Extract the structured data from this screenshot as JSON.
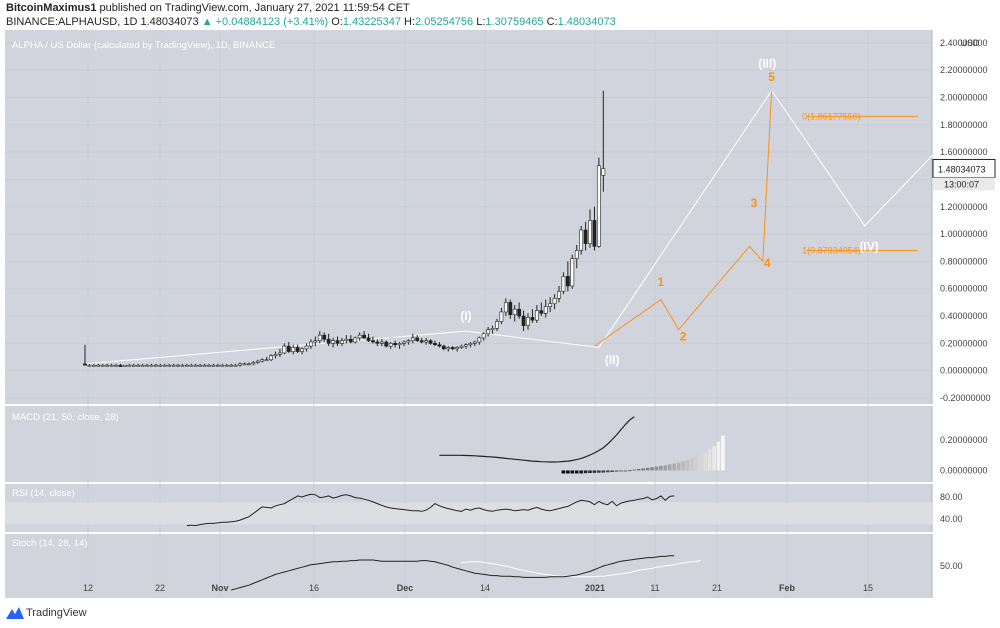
{
  "header": {
    "author": "BitcoinMaximus1",
    "published_text": "published on TradingView.com, January 27, 2021 11:59:54 CET",
    "symbol": "BINANCE:ALPHAUSD, 1D",
    "last": "1.48034073",
    "change": "▲ +0.04884123 (+3.41%)",
    "ohlc": {
      "o_label": "O:",
      "o": "1.43225347",
      "h_label": "H:",
      "h": "2.05254756",
      "l_label": "L:",
      "l": "1.30759465",
      "c_label": "C:",
      "c": "1.48034073"
    }
  },
  "footer": {
    "brand": "TradingView",
    "logo_icon": "tradingview-logo-icon"
  },
  "chart_data": [
    {
      "type": "candlestick",
      "title": "ALPHA / US Dollar (calculated by TradingView), 1D, BINANCE",
      "axis_unit": "USD",
      "scale": "linear",
      "ylim": [
        -0.2,
        2.45
      ],
      "yticks": [
        "2.40000000",
        "2.20000000",
        "2.00000000",
        "1.80000000",
        "1.60000000",
        "1.40000000",
        "1.20000000",
        "1.00000000",
        "0.80000000",
        "0.60000000",
        "0.40000000",
        "0.20000000",
        "0.00000000",
        "-0.20000000"
      ],
      "xticks": [
        "12",
        "22",
        "Nov",
        "16",
        "Dec",
        "14",
        "2021",
        "11",
        "21",
        "Feb",
        "15"
      ],
      "price_label": {
        "value": "1.48034073",
        "countdown": "13:00:07"
      },
      "last_close": 1.48034073,
      "grid": true,
      "colors": {
        "up": "#ffffff",
        "down": "#222222",
        "wave": "#f7931a",
        "projection": "#ffffff",
        "background": "#d1d4dc"
      },
      "candles": [
        [
          0.05,
          0.19,
          0.04,
          0.04
        ],
        [
          0.04,
          0.05,
          0.03,
          0.04
        ],
        [
          0.04,
          0.05,
          0.03,
          0.04
        ],
        [
          0.04,
          0.05,
          0.03,
          0.04
        ],
        [
          0.04,
          0.05,
          0.03,
          0.04
        ],
        [
          0.04,
          0.05,
          0.03,
          0.04
        ],
        [
          0.04,
          0.05,
          0.03,
          0.04
        ],
        [
          0.04,
          0.05,
          0.03,
          0.04
        ],
        [
          0.04,
          0.05,
          0.03,
          0.03
        ],
        [
          0.03,
          0.04,
          0.03,
          0.04
        ],
        [
          0.04,
          0.05,
          0.03,
          0.04
        ],
        [
          0.04,
          0.05,
          0.03,
          0.04
        ],
        [
          0.04,
          0.05,
          0.03,
          0.04
        ],
        [
          0.04,
          0.05,
          0.03,
          0.04
        ],
        [
          0.04,
          0.05,
          0.03,
          0.04
        ],
        [
          0.04,
          0.05,
          0.03,
          0.04
        ],
        [
          0.04,
          0.05,
          0.03,
          0.04
        ],
        [
          0.04,
          0.05,
          0.03,
          0.04
        ],
        [
          0.04,
          0.05,
          0.03,
          0.04
        ],
        [
          0.04,
          0.05,
          0.03,
          0.04
        ],
        [
          0.04,
          0.05,
          0.03,
          0.04
        ],
        [
          0.04,
          0.05,
          0.03,
          0.04
        ],
        [
          0.04,
          0.05,
          0.03,
          0.04
        ],
        [
          0.04,
          0.05,
          0.03,
          0.04
        ],
        [
          0.04,
          0.05,
          0.03,
          0.04
        ],
        [
          0.04,
          0.05,
          0.03,
          0.04
        ],
        [
          0.04,
          0.05,
          0.03,
          0.04
        ],
        [
          0.04,
          0.05,
          0.03,
          0.04
        ],
        [
          0.04,
          0.05,
          0.03,
          0.04
        ],
        [
          0.04,
          0.05,
          0.03,
          0.04
        ],
        [
          0.04,
          0.05,
          0.03,
          0.04
        ],
        [
          0.04,
          0.05,
          0.03,
          0.04
        ],
        [
          0.04,
          0.05,
          0.03,
          0.04
        ],
        [
          0.04,
          0.05,
          0.03,
          0.04
        ],
        [
          0.04,
          0.05,
          0.03,
          0.04
        ],
        [
          0.04,
          0.06,
          0.03,
          0.05
        ],
        [
          0.05,
          0.06,
          0.04,
          0.05
        ],
        [
          0.05,
          0.06,
          0.04,
          0.05
        ],
        [
          0.05,
          0.07,
          0.04,
          0.06
        ],
        [
          0.06,
          0.08,
          0.05,
          0.07
        ],
        [
          0.07,
          0.09,
          0.06,
          0.08
        ],
        [
          0.08,
          0.1,
          0.07,
          0.08
        ],
        [
          0.08,
          0.12,
          0.07,
          0.11
        ],
        [
          0.11,
          0.14,
          0.09,
          0.12
        ],
        [
          0.12,
          0.16,
          0.1,
          0.13
        ],
        [
          0.13,
          0.2,
          0.12,
          0.18
        ],
        [
          0.18,
          0.21,
          0.13,
          0.14
        ],
        [
          0.14,
          0.19,
          0.12,
          0.17
        ],
        [
          0.17,
          0.19,
          0.13,
          0.14
        ],
        [
          0.14,
          0.17,
          0.12,
          0.16
        ],
        [
          0.16,
          0.2,
          0.14,
          0.18
        ],
        [
          0.18,
          0.23,
          0.16,
          0.21
        ],
        [
          0.21,
          0.25,
          0.18,
          0.22
        ],
        [
          0.22,
          0.29,
          0.2,
          0.26
        ],
        [
          0.26,
          0.28,
          0.21,
          0.23
        ],
        [
          0.23,
          0.27,
          0.18,
          0.2
        ],
        [
          0.2,
          0.24,
          0.17,
          0.22
        ],
        [
          0.22,
          0.25,
          0.18,
          0.2
        ],
        [
          0.2,
          0.24,
          0.18,
          0.22
        ],
        [
          0.22,
          0.26,
          0.2,
          0.23
        ],
        [
          0.23,
          0.26,
          0.2,
          0.21
        ],
        [
          0.21,
          0.25,
          0.2,
          0.24
        ],
        [
          0.24,
          0.28,
          0.22,
          0.26
        ],
        [
          0.26,
          0.29,
          0.23,
          0.24
        ],
        [
          0.24,
          0.27,
          0.21,
          0.22
        ],
        [
          0.22,
          0.25,
          0.2,
          0.21
        ],
        [
          0.21,
          0.23,
          0.18,
          0.2
        ],
        [
          0.2,
          0.23,
          0.18,
          0.21
        ],
        [
          0.21,
          0.22,
          0.17,
          0.18
        ],
        [
          0.18,
          0.21,
          0.16,
          0.2
        ],
        [
          0.2,
          0.22,
          0.17,
          0.19
        ],
        [
          0.19,
          0.21,
          0.16,
          0.2
        ],
        [
          0.2,
          0.22,
          0.18,
          0.21
        ],
        [
          0.21,
          0.23,
          0.19,
          0.22
        ],
        [
          0.22,
          0.27,
          0.2,
          0.24
        ],
        [
          0.24,
          0.26,
          0.21,
          0.22
        ],
        [
          0.22,
          0.24,
          0.2,
          0.21
        ],
        [
          0.21,
          0.24,
          0.19,
          0.22
        ],
        [
          0.22,
          0.23,
          0.19,
          0.2
        ],
        [
          0.2,
          0.22,
          0.18,
          0.19
        ],
        [
          0.19,
          0.21,
          0.17,
          0.18
        ],
        [
          0.18,
          0.19,
          0.15,
          0.16
        ],
        [
          0.16,
          0.18,
          0.14,
          0.17
        ],
        [
          0.17,
          0.18,
          0.15,
          0.16
        ],
        [
          0.16,
          0.18,
          0.14,
          0.17
        ],
        [
          0.17,
          0.19,
          0.16,
          0.18
        ],
        [
          0.18,
          0.2,
          0.16,
          0.19
        ],
        [
          0.19,
          0.21,
          0.17,
          0.2
        ],
        [
          0.2,
          0.22,
          0.18,
          0.21
        ],
        [
          0.21,
          0.25,
          0.19,
          0.24
        ],
        [
          0.24,
          0.28,
          0.22,
          0.27
        ],
        [
          0.27,
          0.32,
          0.25,
          0.3
        ],
        [
          0.3,
          0.33,
          0.27,
          0.31
        ],
        [
          0.31,
          0.38,
          0.29,
          0.36
        ],
        [
          0.36,
          0.46,
          0.34,
          0.43
        ],
        [
          0.43,
          0.53,
          0.4,
          0.5
        ],
        [
          0.5,
          0.52,
          0.38,
          0.41
        ],
        [
          0.41,
          0.48,
          0.36,
          0.45
        ],
        [
          0.45,
          0.5,
          0.38,
          0.4
        ],
        [
          0.4,
          0.44,
          0.29,
          0.33
        ],
        [
          0.33,
          0.42,
          0.3,
          0.39
        ],
        [
          0.39,
          0.45,
          0.35,
          0.37
        ],
        [
          0.37,
          0.48,
          0.35,
          0.44
        ],
        [
          0.44,
          0.5,
          0.4,
          0.42
        ],
        [
          0.42,
          0.52,
          0.39,
          0.47
        ],
        [
          0.47,
          0.54,
          0.43,
          0.49
        ],
        [
          0.49,
          0.56,
          0.45,
          0.53
        ],
        [
          0.53,
          0.62,
          0.5,
          0.58
        ],
        [
          0.58,
          0.72,
          0.56,
          0.69
        ],
        [
          0.69,
          0.8,
          0.58,
          0.62
        ],
        [
          0.62,
          0.85,
          0.6,
          0.82
        ],
        [
          0.82,
          0.92,
          0.75,
          0.88
        ],
        [
          0.88,
          1.06,
          0.85,
          1.03
        ],
        [
          1.03,
          1.09,
          0.88,
          0.93
        ],
        [
          0.93,
          1.18,
          0.9,
          1.1
        ],
        [
          1.1,
          1.2,
          0.88,
          0.91
        ],
        [
          0.91,
          1.56,
          0.9,
          1.5
        ],
        [
          1.43,
          2.05,
          1.31,
          1.48
        ]
      ],
      "annotations": [
        {
          "text": "(I)",
          "color": "#ffffff",
          "x": 86,
          "y": 0.37,
          "anchor": "middle"
        },
        {
          "text": "(II)",
          "color": "#ffffff",
          "x": 119,
          "y": 0.05,
          "anchor": "middle"
        },
        {
          "text": "(III)",
          "color": "#ffffff",
          "x": 154,
          "y": 2.22,
          "anchor": "middle"
        },
        {
          "text": "(IV)",
          "color": "#ffffff",
          "x": 177,
          "y": 0.88,
          "anchor": "middle"
        },
        {
          "text": "1",
          "color": "#f7931a",
          "x": 130,
          "y": 0.62,
          "anchor": "middle"
        },
        {
          "text": "2",
          "color": "#f7931a",
          "x": 135,
          "y": 0.22,
          "anchor": "middle"
        },
        {
          "text": "3",
          "color": "#f7931a",
          "x": 151,
          "y": 1.2,
          "anchor": "middle"
        },
        {
          "text": "4",
          "color": "#f7931a",
          "x": 154,
          "y": 0.76,
          "anchor": "middle"
        },
        {
          "text": "5",
          "color": "#f7931a",
          "x": 155,
          "y": 2.12,
          "anchor": "middle"
        }
      ],
      "fib_levels": [
        {
          "label": "0(1.86177556)",
          "value": 1.86177556,
          "x_start": 163,
          "x_end": 188
        },
        {
          "label": "1(0.87934054)",
          "value": 0.87934054,
          "x_start": 163,
          "x_end": 188
        }
      ],
      "wave_path": [
        [
          115,
          0.18
        ],
        [
          130,
          0.52
        ],
        [
          134,
          0.3
        ],
        [
          150,
          0.91
        ],
        [
          153,
          0.8
        ],
        [
          155,
          2.05
        ]
      ],
      "projection_path": [
        [
          0,
          0.05
        ],
        [
          86,
          0.29
        ],
        [
          116,
          0.17
        ],
        [
          155,
          2.05
        ],
        [
          176,
          1.06
        ],
        [
          192,
          1.6
        ]
      ]
    },
    {
      "type": "line+histogram",
      "title": "MACD (21, 50, close, 28)",
      "ylim": [
        -0.05,
        0.4
      ],
      "yticks": [
        "0.20000000",
        "0.00000000"
      ],
      "grid": true,
      "macd_start_index": 80,
      "macd": [
        0.1,
        0.1,
        0.1,
        0.1,
        0.1,
        0.1,
        0.099,
        0.098,
        0.097,
        0.095,
        0.093,
        0.091,
        0.089,
        0.086,
        0.083,
        0.08,
        0.077,
        0.074,
        0.071,
        0.068,
        0.065,
        0.062,
        0.06,
        0.058,
        0.057,
        0.056,
        0.056,
        0.057,
        0.059,
        0.062,
        0.066,
        0.072,
        0.08,
        0.09,
        0.102,
        0.116,
        0.132,
        0.15,
        0.175,
        0.205,
        0.235,
        0.27,
        0.305,
        0.335,
        0.355
      ],
      "hist_start_index": 108,
      "hist": [
        -0.02,
        -0.02,
        -0.02,
        -0.02,
        -0.02,
        -0.018,
        -0.017,
        -0.016,
        -0.015,
        -0.014,
        -0.012,
        -0.01,
        -0.008,
        -0.005,
        -0.002,
        0.002,
        0.006,
        0.01,
        0.014,
        0.018,
        0.022,
        0.026,
        0.03,
        0.034,
        0.04,
        0.046,
        0.052,
        0.06,
        0.07,
        0.08,
        0.092,
        0.105,
        0.12,
        0.14,
        0.16,
        0.19,
        0.23
      ]
    },
    {
      "type": "line",
      "title": "RSI (14, close)",
      "ylim": [
        20,
        100
      ],
      "yticks": [
        "80.00",
        "40.00"
      ],
      "band": [
        30,
        70
      ],
      "grid": true,
      "rsi_start_index": 23,
      "rsi": [
        28,
        29,
        28,
        30,
        31,
        32,
        32,
        33,
        34,
        34,
        35,
        36,
        38,
        41,
        44,
        50,
        56,
        62,
        61,
        60,
        64,
        66,
        68,
        73,
        77,
        82,
        80,
        83,
        85,
        84,
        79,
        80,
        82,
        78,
        80,
        83,
        84,
        82,
        79,
        78,
        76,
        74,
        71,
        68,
        65,
        62,
        60,
        59,
        58,
        57,
        56,
        55,
        55,
        54,
        56,
        61,
        68,
        64,
        61,
        59,
        57,
        55,
        54,
        58,
        56,
        59,
        60,
        57,
        55,
        54,
        56,
        57,
        58,
        57,
        55,
        56,
        57,
        56,
        59,
        61,
        58,
        56,
        55,
        57,
        59,
        61,
        63,
        67,
        71,
        74,
        73,
        71,
        66,
        72,
        68,
        66,
        72,
        64,
        69,
        71,
        73,
        74,
        76,
        77,
        80,
        75,
        77,
        82,
        74,
        81,
        82
      ]
    },
    {
      "type": "line",
      "title": "Stoch (14, 28, 14)",
      "ylim": [
        0,
        100
      ],
      "yticks": [
        "50.00"
      ],
      "grid": true,
      "k_start_index": 33,
      "k": [
        10,
        12,
        14,
        16,
        18,
        21,
        24,
        27,
        30,
        33,
        36,
        38,
        40,
        42,
        44,
        46,
        48,
        50,
        52,
        53,
        54,
        55,
        56,
        57,
        57,
        58,
        58,
        59,
        59,
        60,
        60,
        60,
        60,
        59,
        58,
        58,
        58,
        58,
        58,
        58,
        58,
        58,
        58,
        59,
        59,
        58,
        57,
        55,
        53,
        51,
        48,
        46,
        44,
        42,
        40,
        38,
        37,
        36,
        35,
        34,
        34,
        33,
        33,
        33,
        32,
        32,
        31,
        31,
        31,
        31,
        31,
        31,
        32,
        32,
        32,
        32,
        33,
        34,
        35,
        37,
        39,
        41,
        44,
        47,
        50,
        52,
        54,
        56,
        58,
        59,
        60,
        61,
        62,
        63,
        64,
        64,
        65,
        66,
        66,
        67,
        67
      ],
      "d_start_index": 85,
      "d": [
        56,
        56,
        57,
        57,
        57,
        56,
        55,
        54,
        53,
        51,
        50,
        48,
        46,
        44,
        43,
        41,
        40,
        38,
        37,
        36,
        35,
        34,
        33,
        33,
        33,
        32,
        32,
        32,
        32,
        32,
        32,
        33,
        33,
        34,
        35,
        36,
        37,
        38,
        39,
        41,
        43,
        44,
        45,
        46,
        48,
        49,
        50,
        51,
        52,
        54,
        55,
        56,
        57,
        58,
        59
      ]
    }
  ]
}
